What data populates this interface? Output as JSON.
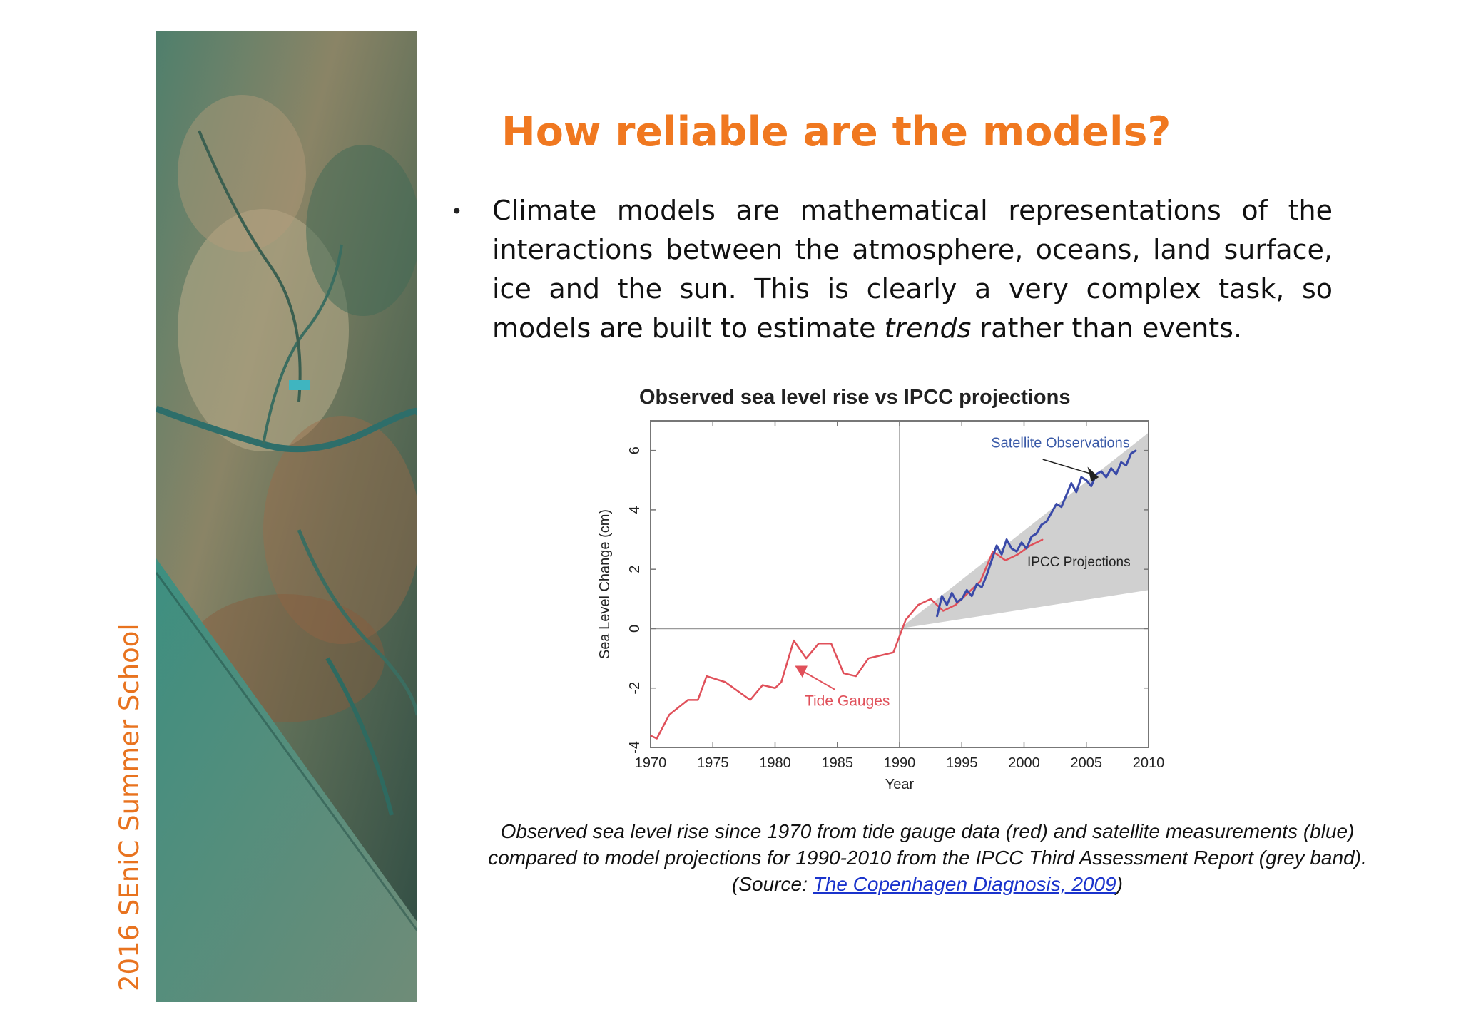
{
  "side_label": "2016 SEniC Summer School",
  "aerial_image": {
    "description_icon": "aerial-delta-photo"
  },
  "title": "How reliable are the models?",
  "bullet": {
    "before_italic": "Climate models are mathematical representations of the interactions between the atmosphere, oceans, land surface, ice and the sun. This is clearly a very complex task, so models are built to estimate ",
    "italic": "trends",
    "after_italic": " rather than events."
  },
  "caption": {
    "text": "Observed sea level rise since 1970 from tide gauge data (red) and satellite measurements (blue) compared to model projections for 1990-2010 from the IPCC Third Assessment Report (grey band).  (Source: ",
    "link": "The Copenhagen Diagnosis, 2009",
    "close": ")"
  },
  "chart_data": {
    "type": "line",
    "title": "Observed sea level rise vs IPCC projections",
    "xlabel": "Year",
    "ylabel": "Sea Level Change (cm)",
    "xlim": [
      1970,
      2010
    ],
    "ylim": [
      -4,
      7
    ],
    "x_ticks": [
      1970,
      1975,
      1980,
      1985,
      1990,
      1995,
      2000,
      2005,
      2010
    ],
    "y_ticks": [
      -4,
      -2,
      0,
      2,
      4,
      6
    ],
    "colors": {
      "tide": "#e0505a",
      "satellite": "#3a4aa8",
      "band": "#d0d0d0",
      "frame": "#777777"
    },
    "series": [
      {
        "name": "Tide Gauges",
        "x": [
          1970,
          1970.5,
          1971.5,
          1973,
          1973.8,
          1974.5,
          1976,
          1977,
          1978,
          1979,
          1980,
          1980.5,
          1981.5,
          1982.5,
          1983.5,
          1984.5,
          1985.5,
          1986.5,
          1987.5,
          1988.5,
          1989.5,
          1990.5,
          1991.5,
          1992.5,
          1993.5,
          1994.5,
          1995.5,
          1996.5,
          1997.5,
          1998.5,
          1999.5,
          2000.5,
          2001.5
        ],
        "y": [
          -3.6,
          -3.7,
          -2.9,
          -2.4,
          -2.4,
          -1.6,
          -1.8,
          -2.1,
          -2.4,
          -1.9,
          -2.0,
          -1.8,
          -0.4,
          -1.0,
          -0.5,
          -0.5,
          -1.5,
          -1.6,
          -1.0,
          -0.9,
          -0.8,
          0.3,
          0.8,
          1.0,
          0.6,
          0.8,
          1.2,
          1.6,
          2.6,
          2.3,
          2.5,
          2.8,
          3.0
        ]
      },
      {
        "name": "Satellite Observations",
        "x": [
          1993,
          1993.4,
          1993.8,
          1994.2,
          1994.6,
          1995,
          1995.4,
          1995.8,
          1996.2,
          1996.6,
          1997,
          1997.4,
          1997.8,
          1998.2,
          1998.6,
          1999,
          1999.4,
          1999.8,
          2000.2,
          2000.6,
          2001,
          2001.4,
          2001.8,
          2002.2,
          2002.6,
          2003,
          2003.4,
          2003.8,
          2004.2,
          2004.6,
          2005,
          2005.4,
          2005.8,
          2006.2,
          2006.6,
          2007,
          2007.4,
          2007.8,
          2008.2,
          2008.6,
          2009
        ],
        "y": [
          0.4,
          1.1,
          0.8,
          1.2,
          0.9,
          1.0,
          1.3,
          1.1,
          1.5,
          1.4,
          1.8,
          2.3,
          2.8,
          2.5,
          3.0,
          2.7,
          2.6,
          2.9,
          2.7,
          3.1,
          3.2,
          3.5,
          3.6,
          3.9,
          4.2,
          4.1,
          4.5,
          4.9,
          4.6,
          5.1,
          5.0,
          4.8,
          5.2,
          5.3,
          5.1,
          5.4,
          5.2,
          5.6,
          5.5,
          5.9,
          6.0
        ]
      }
    ],
    "band": {
      "name": "IPCC Projections",
      "x": [
        1990,
        2010
      ],
      "lower": [
        0.0,
        1.3
      ],
      "upper": [
        0.0,
        6.6
      ]
    },
    "annotations": [
      "Satellite Observations",
      "IPCC Projections",
      "Tide Gauges"
    ]
  }
}
